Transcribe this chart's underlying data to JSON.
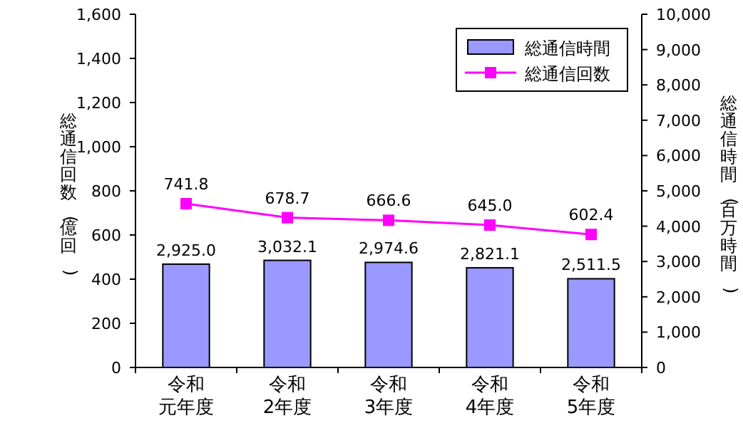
{
  "chart_data": {
    "type": "bar",
    "categories": [
      "令和元年度",
      "令和2年度",
      "令和3年度",
      "令和4年度",
      "令和5年度"
    ],
    "ylabel": "総通信回数(億回)",
    "y2label": "総通信時間(百万時間)",
    "ylim": [
      0,
      1600
    ],
    "yticks": [
      0,
      200,
      400,
      {
        "value": 600,
        "label": "600"
      },
      800,
      {
        "value": 1000,
        "label": "1,000"
      },
      {
        "value": 1200,
        "label": "1,200"
      },
      {
        "value": 1400,
        "label": "1,400"
      },
      {
        "value": 1600,
        "label": "1,600"
      }
    ],
    "y2lim": [
      0,
      10000
    ],
    "y2ticks": [
      0,
      {
        "value": 1000,
        "label": "1,000"
      },
      {
        "value": 2000,
        "label": "2,000"
      },
      {
        "value": 3000,
        "label": "3,000"
      },
      {
        "value": 4000,
        "label": "4,000"
      },
      {
        "value": 5000,
        "label": "5,000"
      },
      {
        "value": 6000,
        "label": "6,000"
      },
      {
        "value": 7000,
        "label": "7,000"
      },
      {
        "value": 8000,
        "label": "8,000"
      },
      {
        "value": 9000,
        "label": "9,000"
      },
      {
        "value": 10000,
        "label": "10,000"
      }
    ],
    "series": [
      {
        "name": "総通信時間",
        "axis": "y2",
        "color": "#9999ff",
        "values": [
          2925.0,
          3032.1,
          2974.6,
          2821.1,
          2511.5
        ],
        "value_labels": [
          "2,925.0",
          "3,032.1",
          "2,974.6",
          "2,821.1",
          "2,511.5"
        ]
      },
      {
        "name": "総通信回数",
        "type": "line",
        "axis": "y",
        "color": "#ff00ff",
        "marker": "square",
        "values": [
          741.8,
          678.7,
          666.6,
          645.0,
          602.4
        ],
        "value_labels": [
          "741.8",
          "678.7",
          "666.6",
          "645.0",
          "602.4"
        ]
      }
    ],
    "legend": "top right",
    "grid": false
  }
}
